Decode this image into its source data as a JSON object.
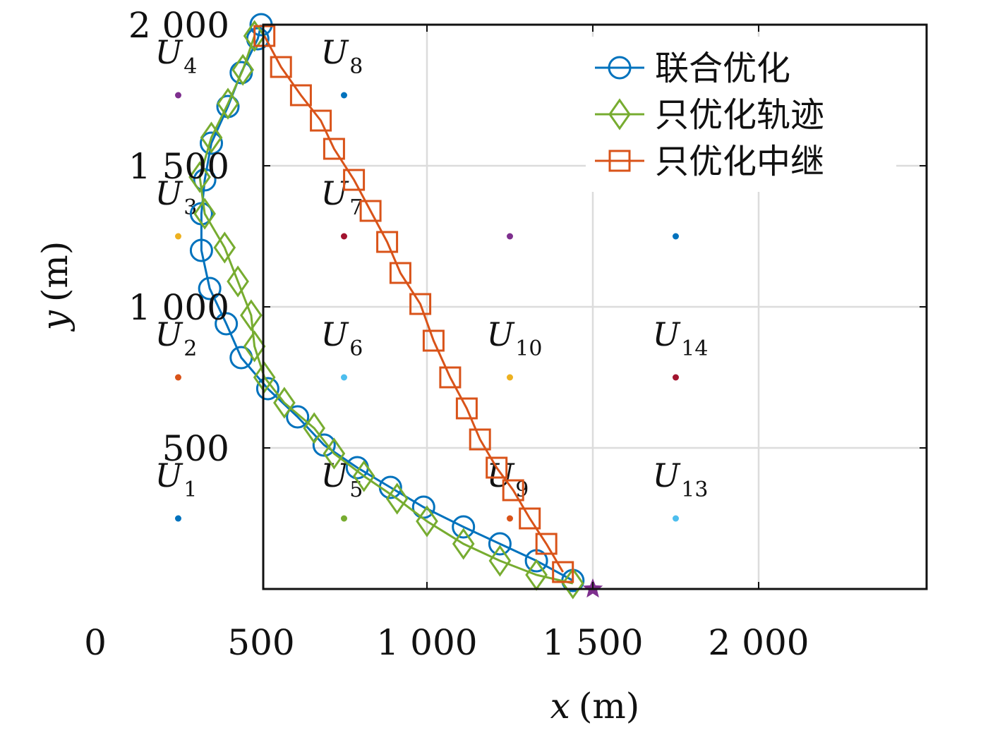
{
  "chart_data": {
    "type": "line",
    "title": "",
    "xlabel": {
      "var": "x",
      "unit": "(m)"
    },
    "ylabel": {
      "var": "y",
      "unit": "(m)"
    },
    "xlim": [
      0,
      2000
    ],
    "ylim": [
      0,
      2000
    ],
    "xticks": [
      0,
      500,
      1000,
      1500,
      2000
    ],
    "yticks": [
      500,
      1000,
      1500,
      2000
    ],
    "xtick_labels": [
      "0",
      "500",
      "1 000",
      "1 500",
      "2 000"
    ],
    "ytick_labels": [
      "500",
      "1 000",
      "1 500",
      "2 000"
    ],
    "grid": true,
    "legend_position": "top-right",
    "series": [
      {
        "name": "联合优化",
        "color": "#0072BD",
        "marker": "circle",
        "points": [
          [
            500,
            2000
          ],
          [
            490,
            1950
          ],
          [
            440,
            1830
          ],
          [
            400,
            1710
          ],
          [
            350,
            1580
          ],
          [
            330,
            1450
          ],
          [
            320,
            1330
          ],
          [
            320,
            1200
          ],
          [
            345,
            1065
          ],
          [
            395,
            940
          ],
          [
            440,
            820
          ],
          [
            520,
            710
          ],
          [
            610,
            610
          ],
          [
            690,
            510
          ],
          [
            790,
            430
          ],
          [
            890,
            360
          ],
          [
            990,
            290
          ],
          [
            1110,
            220
          ],
          [
            1220,
            160
          ],
          [
            1330,
            100
          ],
          [
            1440,
            30
          ]
        ]
      },
      {
        "name": "只优化轨迹",
        "color": "#77AC30",
        "marker": "diamond",
        "points": [
          [
            480,
            1960
          ],
          [
            445,
            1840
          ],
          [
            400,
            1720
          ],
          [
            350,
            1600
          ],
          [
            315,
            1460
          ],
          [
            330,
            1330
          ],
          [
            390,
            1210
          ],
          [
            430,
            1090
          ],
          [
            470,
            970
          ],
          [
            480,
            860
          ],
          [
            510,
            750
          ],
          [
            570,
            660
          ],
          [
            660,
            570
          ],
          [
            720,
            480
          ],
          [
            810,
            400
          ],
          [
            910,
            320
          ],
          [
            1000,
            240
          ],
          [
            1110,
            160
          ],
          [
            1220,
            100
          ],
          [
            1330,
            50
          ],
          [
            1440,
            20
          ]
        ]
      },
      {
        "name": "只优化中继",
        "color": "#D95319",
        "marker": "square",
        "points": [
          [
            510,
            1960
          ],
          [
            560,
            1850
          ],
          [
            620,
            1750
          ],
          [
            680,
            1660
          ],
          [
            720,
            1560
          ],
          [
            780,
            1450
          ],
          [
            830,
            1340
          ],
          [
            880,
            1230
          ],
          [
            920,
            1120
          ],
          [
            980,
            1010
          ],
          [
            1020,
            880
          ],
          [
            1070,
            750
          ],
          [
            1120,
            640
          ],
          [
            1160,
            530
          ],
          [
            1210,
            430
          ],
          [
            1260,
            350
          ],
          [
            1310,
            250
          ],
          [
            1360,
            160
          ],
          [
            1410,
            60
          ]
        ]
      }
    ],
    "users": [
      {
        "label": "U",
        "sub": "1",
        "x": 250,
        "y": 250,
        "color": "#0072BD"
      },
      {
        "label": "U",
        "sub": "2",
        "x": 250,
        "y": 750,
        "color": "#D95319"
      },
      {
        "label": "U",
        "sub": "3",
        "x": 250,
        "y": 1250,
        "color": "#EDB120"
      },
      {
        "label": "U",
        "sub": "4",
        "x": 250,
        "y": 1750,
        "color": "#7E2F8E"
      },
      {
        "label": "U",
        "sub": "5",
        "x": 750,
        "y": 250,
        "color": "#77AC30"
      },
      {
        "label": "U",
        "sub": "6",
        "x": 750,
        "y": 750,
        "color": "#4DBEEE"
      },
      {
        "label": "U",
        "sub": "7",
        "x": 750,
        "y": 1250,
        "color": "#A2142F"
      },
      {
        "label": "U",
        "sub": "8",
        "x": 750,
        "y": 1750,
        "color": "#0072BD"
      },
      {
        "label": "U",
        "sub": "9",
        "x": 1250,
        "y": 250,
        "color": "#D95319"
      },
      {
        "label": "U",
        "sub": "10",
        "x": 1250,
        "y": 750,
        "color": "#EDB120"
      },
      {
        "label": "",
        "sub": "",
        "x": 1250,
        "y": 1250,
        "color": "#7E2F8E"
      },
      {
        "label": "U",
        "sub": "13",
        "x": 1750,
        "y": 250,
        "color": "#4DBEEE"
      },
      {
        "label": "U",
        "sub": "14",
        "x": 1750,
        "y": 750,
        "color": "#A2142F"
      },
      {
        "label": "",
        "sub": "",
        "x": 1750,
        "y": 1250,
        "color": "#0072BD"
      }
    ],
    "end_point": {
      "x": 1500,
      "y": 0,
      "color": "#7E2F8E",
      "marker": "star"
    }
  }
}
